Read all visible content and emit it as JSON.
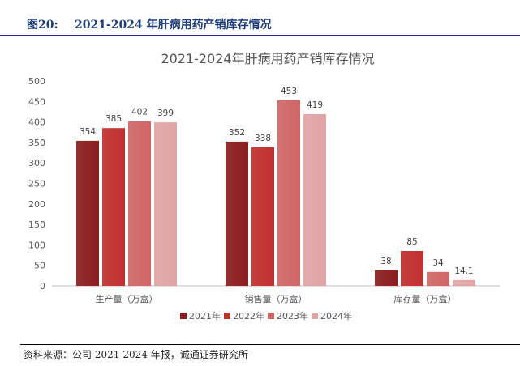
{
  "figure": {
    "label": "图20:",
    "title": "2021-2024 年肝病用药产销库存情况"
  },
  "source": "资料来源：公司 2021-2024 年报，诚通证券研究所",
  "chart_data": {
    "type": "bar",
    "title": "2021-2024年肝病用药产销库存情况",
    "categories": [
      "生产量（万盒）",
      "销售量（万盒）",
      "库存量（万盒）"
    ],
    "series": [
      {
        "name": "2021年",
        "values": [
          354,
          352,
          38
        ],
        "color": "#8b1d1d"
      },
      {
        "name": "2022年",
        "values": [
          385,
          338,
          85
        ],
        "color": "#c0302e"
      },
      {
        "name": "2023年",
        "values": [
          402,
          453,
          34
        ],
        "color": "#d06666"
      },
      {
        "name": "2024年",
        "values": [
          399,
          419,
          14.1
        ],
        "color": "#dfa4a4"
      }
    ],
    "ylim": [
      0,
      500
    ],
    "yticks": [
      0,
      50,
      100,
      150,
      200,
      250,
      300,
      350,
      400,
      450,
      500
    ],
    "xlabel": "",
    "ylabel": "",
    "grid": false,
    "legend": "bottom"
  }
}
